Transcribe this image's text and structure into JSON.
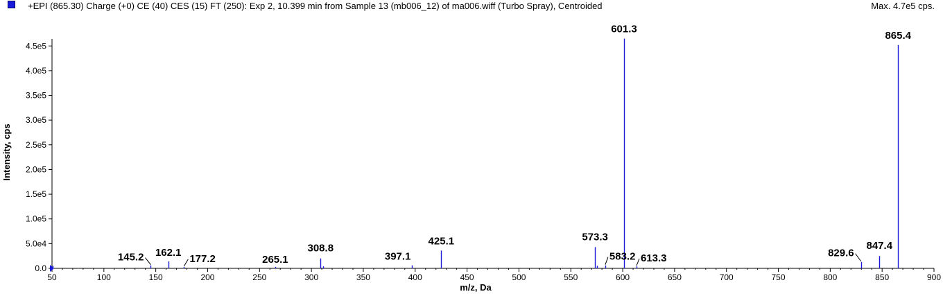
{
  "header": {
    "title": "+EPI (865.30) Charge (+0) CE (40) CES (15) FT (250): Exp 2, 10.399 min from Sample 13 (mb006_12) of ma006.wiff (Turbo Spray), Centroided",
    "max_label": "Max. 4.7e5 cps."
  },
  "colors": {
    "series": "#1a1adb",
    "swatch": "#1a1adb",
    "axis": "#000000"
  },
  "chart_data": {
    "type": "bar",
    "title": "+EPI (865.30) Charge (+0) CE (40) CES (15) FT (250): Exp 2, 10.399 min from Sample 13 (mb006_12) of ma006.wiff (Turbo Spray), Centroided",
    "xlabel": "m/z, Da",
    "ylabel": "Intensity, cps",
    "xlim": [
      50,
      900
    ],
    "ylim": [
      0,
      470000
    ],
    "grid": false,
    "x_ticks": [
      50,
      100,
      150,
      200,
      250,
      300,
      350,
      400,
      450,
      500,
      550,
      600,
      650,
      700,
      750,
      800,
      850,
      900
    ],
    "x_tick_labels": [
      "50",
      "100",
      "150",
      "200",
      "250",
      "300",
      "350",
      "400",
      "450",
      "500",
      "550",
      "600",
      "650",
      "700",
      "750",
      "800",
      "850",
      "900"
    ],
    "y_ticks": [
      0,
      50000,
      100000,
      150000,
      200000,
      250000,
      300000,
      350000,
      400000,
      450000
    ],
    "y_tick_labels": [
      "0.0",
      "5.0e4",
      "1.0e5",
      "1.5e5",
      "2.0e5",
      "2.5e5",
      "3.0e5",
      "3.5e5",
      "4.0e5",
      "4.5e5"
    ],
    "peaks": [
      {
        "mz": 51.0,
        "intensity": 5000
      },
      {
        "mz": 145.2,
        "intensity": 6000,
        "label": "145.2"
      },
      {
        "mz": 162.1,
        "intensity": 14000,
        "label": "162.1"
      },
      {
        "mz": 177.2,
        "intensity": 3000,
        "label": "177.2"
      },
      {
        "mz": 265.1,
        "intensity": 3000,
        "label": "265.1"
      },
      {
        "mz": 308.8,
        "intensity": 20000,
        "label": "308.8"
      },
      {
        "mz": 311.0,
        "intensity": 4000
      },
      {
        "mz": 397.1,
        "intensity": 6000,
        "label": "397.1"
      },
      {
        "mz": 425.1,
        "intensity": 36000,
        "label": "425.1"
      },
      {
        "mz": 573.3,
        "intensity": 43000,
        "label": "573.3"
      },
      {
        "mz": 575.0,
        "intensity": 5000
      },
      {
        "mz": 583.2,
        "intensity": 6000,
        "label": "583.2"
      },
      {
        "mz": 601.3,
        "intensity": 465000,
        "label": "601.3"
      },
      {
        "mz": 613.3,
        "intensity": 4000,
        "label": "613.3"
      },
      {
        "mz": 829.6,
        "intensity": 13000,
        "label": "829.6"
      },
      {
        "mz": 847.4,
        "intensity": 25000,
        "label": "847.4"
      },
      {
        "mz": 865.4,
        "intensity": 452000,
        "label": "865.4"
      }
    ]
  }
}
